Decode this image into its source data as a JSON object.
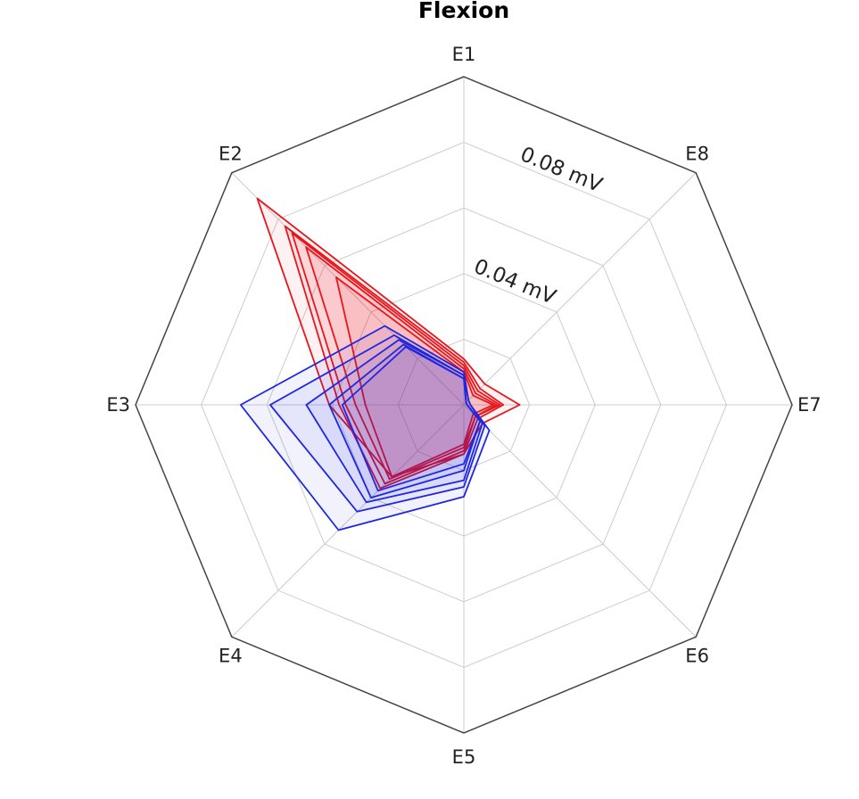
{
  "chart_data": {
    "type": "radar",
    "title": "Flexion",
    "axes": [
      "E1",
      "E2",
      "E3",
      "E4",
      "E5",
      "E6",
      "E7",
      "E8"
    ],
    "rmax": 0.1,
    "grid_levels": [
      0.02,
      0.04,
      0.06,
      0.08,
      0.1
    ],
    "ring_labels": [
      {
        "value": 0.04,
        "text": "0.04 mV"
      },
      {
        "value": 0.08,
        "text": "0.08 mV"
      }
    ],
    "grid": true,
    "colors": {
      "red": "#e8161b",
      "blue": "#1f27e0",
      "grid": "#cccccc",
      "frame": "#444444"
    },
    "series": [
      {
        "color": "red",
        "values": [
          0.014,
          0.089,
          0.041,
          0.031,
          0.015,
          0.008,
          0.017,
          0.009
        ]
      },
      {
        "color": "red",
        "values": [
          0.013,
          0.077,
          0.038,
          0.036,
          0.015,
          0.006,
          0.012,
          0.007
        ]
      },
      {
        "color": "red",
        "values": [
          0.012,
          0.074,
          0.036,
          0.034,
          0.014,
          0.005,
          0.011,
          0.006
        ]
      },
      {
        "color": "red",
        "values": [
          0.011,
          0.068,
          0.033,
          0.032,
          0.013,
          0.005,
          0.01,
          0.005
        ]
      },
      {
        "color": "red",
        "values": [
          0.01,
          0.055,
          0.03,
          0.031,
          0.012,
          0.004,
          0.009,
          0.004
        ]
      },
      {
        "color": "blue",
        "values": [
          0.01,
          0.034,
          0.068,
          0.054,
          0.028,
          0.011,
          0.002,
          0.002
        ]
      },
      {
        "color": "blue",
        "values": [
          0.009,
          0.03,
          0.059,
          0.046,
          0.025,
          0.009,
          0.002,
          0.002
        ]
      },
      {
        "color": "blue",
        "values": [
          0.009,
          0.028,
          0.048,
          0.042,
          0.023,
          0.008,
          0.001,
          0.001
        ]
      },
      {
        "color": "blue",
        "values": [
          0.008,
          0.026,
          0.041,
          0.04,
          0.02,
          0.007,
          0.001,
          0.001
        ]
      },
      {
        "color": "blue",
        "values": [
          0.008,
          0.025,
          0.037,
          0.037,
          0.018,
          0.007,
          0.001,
          0.001
        ]
      }
    ]
  }
}
